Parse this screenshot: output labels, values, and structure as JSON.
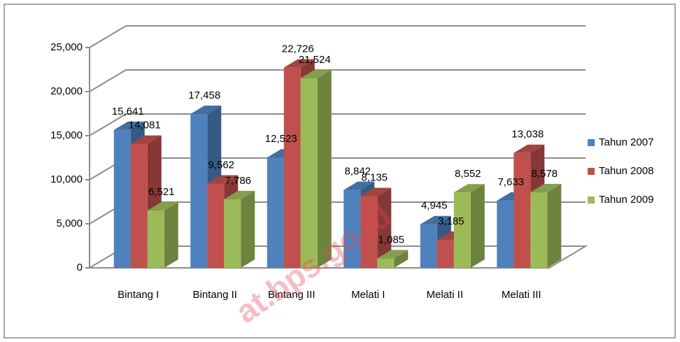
{
  "chart_data": {
    "type": "bar3d",
    "categories": [
      "Bintang I",
      "Bintang II",
      "Bintang III",
      "Melati I",
      "Melati II",
      "Melati III"
    ],
    "series": [
      {
        "name": "Tahun 2007",
        "color": "#4f81bd",
        "values": [
          15641,
          17458,
          12523,
          8842,
          4945,
          7633
        ],
        "value_labels": [
          "15,641",
          "17,458",
          "12,523",
          "8,842",
          "4,945",
          "7,633"
        ]
      },
      {
        "name": "Tahun 2008",
        "color": "#c0504d",
        "values": [
          14081,
          9562,
          22726,
          8135,
          3185,
          13038
        ],
        "value_labels": [
          "14,081",
          "9,562",
          "22,726",
          "8,135",
          "3,185",
          "13,038"
        ]
      },
      {
        "name": "Tahun 2009",
        "color": "#9bbb59",
        "values": [
          6521,
          7786,
          21524,
          1085,
          8552,
          8578
        ],
        "value_labels": [
          "6,521",
          "7,786",
          "21,524",
          "1,085",
          "8,552",
          "8,578"
        ]
      }
    ],
    "ylim": [
      0,
      25000
    ],
    "yticks": [
      0,
      {
        "value": 5000,
        "label": "5,000"
      },
      {
        "value": 10000,
        "label": "10,000"
      },
      {
        "value": 15000,
        "label": "15,000"
      },
      {
        "value": 20000,
        "label": "20,000"
      },
      {
        "value": 25000,
        "label": "25,000"
      }
    ],
    "grid": true,
    "legend": "right",
    "watermark": "at.bps.go.id"
  }
}
